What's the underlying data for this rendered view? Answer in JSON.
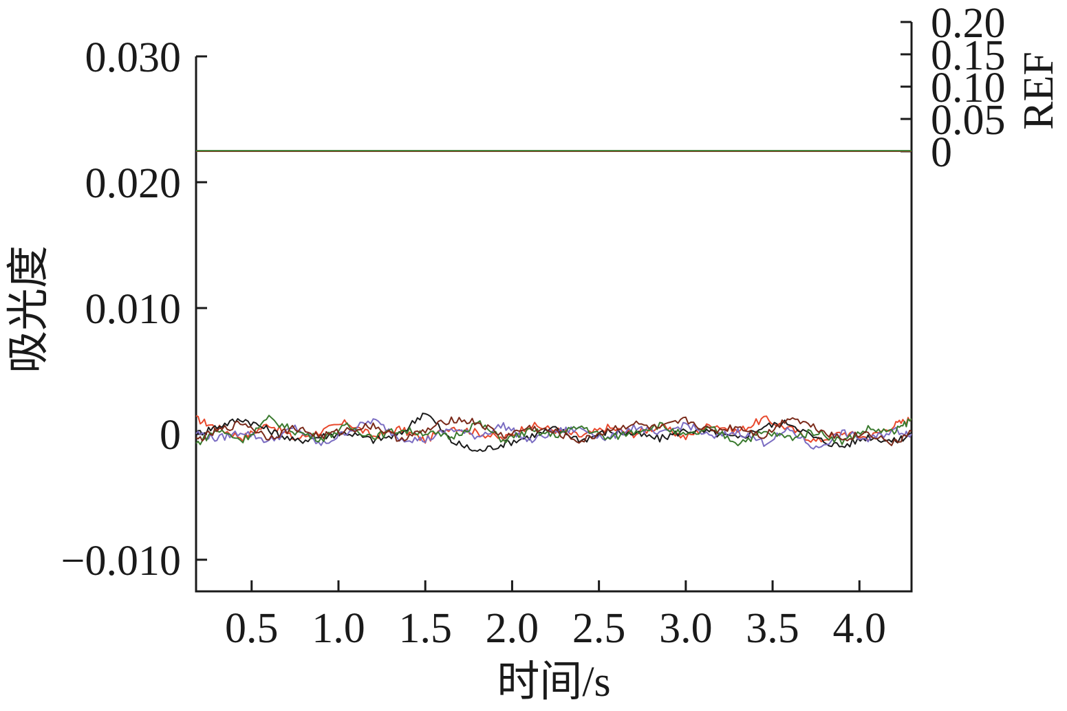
{
  "chart_data": {
    "type": "line",
    "xlabel": "时间/s",
    "ylabel": "吸光度",
    "y2label": "REF",
    "xlim": [
      0.18,
      4.3
    ],
    "ylim": [
      -0.0125,
      0.0305
    ],
    "y2lim": [
      0,
      0.2
    ],
    "x_ticks": [
      0.5,
      1.0,
      1.5,
      2.0,
      2.5,
      3.0,
      3.5,
      4.0
    ],
    "x_tick_labels": [
      "0.5",
      "1.0",
      "1.5",
      "2.0",
      "2.5",
      "3.0",
      "3.5",
      "4.0"
    ],
    "y_ticks": [
      -0.01,
      0,
      0.01,
      0.02,
      0.03
    ],
    "y_tick_labels": [
      "−0.010",
      "0",
      "0.010",
      "0.020",
      "0.030"
    ],
    "y2_ticks": [
      0,
      0.05,
      0.1,
      0.15,
      0.2
    ],
    "y2_tick_labels": [
      "0",
      "0.05",
      "0.10",
      "0.15",
      "0.20"
    ],
    "grid": false,
    "legend": "none",
    "absorbance_series": [
      {
        "color": "#e8472b",
        "x": [
          0.18,
          0.3,
          0.45,
          0.6,
          0.75,
          0.9,
          1.05,
          1.2,
          1.35,
          1.5,
          1.65,
          1.8,
          1.95,
          2.1,
          2.25,
          2.4,
          2.55,
          2.7,
          2.85,
          3.0,
          3.15,
          3.3,
          3.45,
          3.6,
          3.75,
          3.9,
          4.05,
          4.2,
          4.3
        ],
        "y": [
          0.0012,
          0.0005,
          -0.0003,
          0.0008,
          -0.0004,
          0.0002,
          0.0009,
          -0.0002,
          0.0004,
          -0.0005,
          0.0006,
          0.0001,
          -0.0004,
          0.0007,
          0.0003,
          -0.0002,
          0.0005,
          0.0,
          0.0006,
          -0.0003,
          0.0008,
          0.0002,
          0.0012,
          0.0004,
          -0.0006,
          0.0001,
          -0.0003,
          0.0007,
          0.0012
        ]
      },
      {
        "color": "#1a1a1a",
        "x": [
          0.18,
          0.3,
          0.45,
          0.6,
          0.75,
          0.9,
          1.05,
          1.2,
          1.35,
          1.5,
          1.65,
          1.8,
          1.95,
          2.1,
          2.25,
          2.4,
          2.55,
          2.7,
          2.85,
          3.0,
          3.15,
          3.3,
          3.45,
          3.6,
          3.75,
          3.9,
          4.05,
          4.2,
          4.3
        ],
        "y": [
          0.0,
          0.0006,
          0.0012,
          0.0003,
          -0.0006,
          -0.0002,
          0.0001,
          -0.0005,
          -0.0001,
          0.0018,
          -0.0006,
          -0.0014,
          -0.0008,
          -0.0002,
          0.0004,
          -0.0005,
          0.0002,
          0.0,
          -0.0004,
          0.0003,
          0.0001,
          -0.0004,
          0.0006,
          0.0009,
          -0.0004,
          -0.001,
          -0.0002,
          -0.0006,
          0.0
        ]
      },
      {
        "color": "#7a6cc2",
        "x": [
          0.18,
          0.3,
          0.45,
          0.6,
          0.75,
          0.9,
          1.05,
          1.2,
          1.35,
          1.5,
          1.65,
          1.8,
          1.95,
          2.1,
          2.25,
          2.4,
          2.55,
          2.7,
          2.85,
          3.0,
          3.15,
          3.3,
          3.45,
          3.6,
          3.75,
          3.9,
          4.05,
          4.2,
          4.3
        ],
        "y": [
          0.0001,
          -0.0004,
          0.0002,
          -0.0006,
          0.0005,
          -0.0009,
          0.0002,
          0.0011,
          -0.0003,
          -0.0005,
          0.0004,
          -0.0002,
          0.0007,
          -0.0006,
          0.0002,
          0.0004,
          -0.0004,
          0.0006,
          -0.0001,
          0.0008,
          -0.0003,
          0.0002,
          -0.0007,
          0.0003,
          -0.0012,
          0.0001,
          -0.0005,
          0.0003,
          0.0
        ]
      },
      {
        "color": "#3a7a2e",
        "x": [
          0.18,
          0.3,
          0.45,
          0.6,
          0.75,
          0.9,
          1.05,
          1.2,
          1.35,
          1.5,
          1.65,
          1.8,
          1.95,
          2.1,
          2.25,
          2.4,
          2.55,
          2.7,
          2.85,
          3.0,
          3.15,
          3.3,
          3.45,
          3.6,
          3.75,
          3.9,
          4.05,
          4.2,
          4.3
        ],
        "y": [
          -0.0008,
          0.0003,
          -0.0005,
          0.0012,
          0.0002,
          -0.0004,
          0.0006,
          -0.0002,
          0.0003,
          0.0001,
          -0.0003,
          0.0009,
          -0.0005,
          0.0002,
          -0.0001,
          0.0006,
          -0.0004,
          0.0002,
          0.0007,
          -0.0002,
          0.0004,
          -0.0007,
          0.0001,
          -0.0003,
          0.0002,
          -0.0006,
          0.0004,
          0.0001,
          0.0012
        ]
      },
      {
        "color": "#7a2a1a",
        "x": [
          0.18,
          0.3,
          0.45,
          0.6,
          0.75,
          0.9,
          1.05,
          1.2,
          1.35,
          1.5,
          1.65,
          1.8,
          1.95,
          2.1,
          2.25,
          2.4,
          2.55,
          2.7,
          2.85,
          3.0,
          3.15,
          3.3,
          3.45,
          3.6,
          3.75,
          3.9,
          4.05,
          4.2,
          4.3
        ],
        "y": [
          -0.0005,
          0.0002,
          0.0009,
          -0.0003,
          0.0005,
          -0.0002,
          0.0003,
          0.0007,
          -0.0004,
          0.0002,
          0.0012,
          0.0009,
          -0.0002,
          0.0005,
          0.0001,
          -0.0006,
          0.0003,
          0.0008,
          0.0004,
          0.0011,
          0.0002,
          0.0006,
          -0.0002,
          0.0014,
          0.0005,
          -0.0004,
          0.0001,
          -0.0008,
          0.0002
        ]
      }
    ],
    "ref_series": [
      {
        "color": "#e8472b",
        "x": [
          0.18,
          4.3
        ],
        "y2": [
          0.0,
          0.0
        ]
      },
      {
        "color": "#1a1a1a",
        "x": [
          0.18,
          4.3
        ],
        "y2": [
          0.0005,
          0.0005
        ]
      },
      {
        "color": "#3a7a2e",
        "x": [
          0.18,
          4.3
        ],
        "y2": [
          0.001,
          0.001
        ]
      }
    ]
  }
}
